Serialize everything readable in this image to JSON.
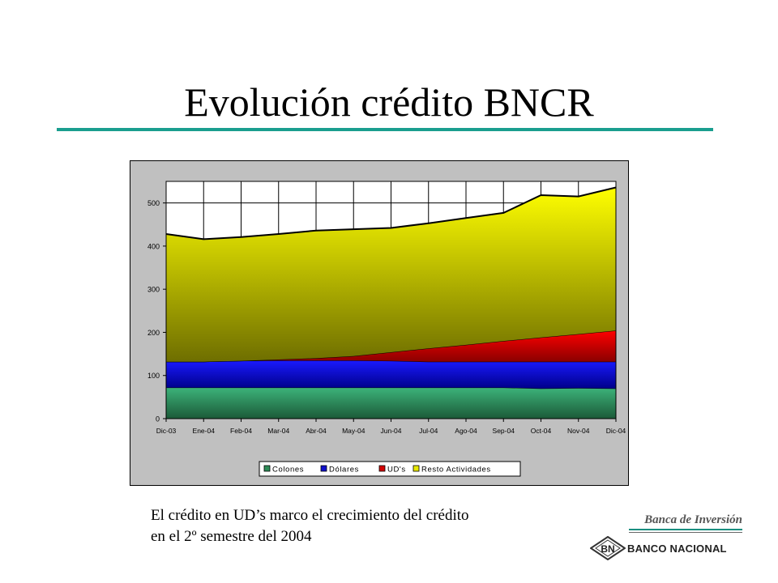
{
  "slide": {
    "title": "Evolución crédito BNCR",
    "caption_line1": "El crédito en UD’s marco el crecimiento del crédito",
    "caption_line2": "en el 2º semestre del 2004"
  },
  "logo": {
    "tagline": "Banca de Inversión",
    "badge": "BN",
    "name": "BANCO NACIONAL"
  },
  "chart_data": {
    "type": "area",
    "stacked": true,
    "categories": [
      "Dic-03",
      "Ene-04",
      "Feb-04",
      "Mar-04",
      "Abr-04",
      "May-04",
      "Jun-04",
      "Jul-04",
      "Ago-04",
      "Sep-04",
      "Oct-04",
      "Nov-04",
      "Dic-04"
    ],
    "series": [
      {
        "name": "Colones",
        "color": "#2e8b57",
        "values": [
          72,
          72,
          72,
          72,
          72,
          72,
          72,
          72,
          72,
          72,
          70,
          71,
          70
        ]
      },
      {
        "name": "Dólares",
        "color": "#1010cc",
        "values": [
          60,
          60,
          62,
          63,
          63,
          63,
          62,
          60,
          60,
          60,
          62,
          61,
          62
        ]
      },
      {
        "name": "UD's",
        "color": "#d40000",
        "values": [
          0,
          0,
          0,
          2,
          5,
          10,
          20,
          31,
          39,
          48,
          56,
          64,
          72
        ]
      },
      {
        "name": "Resto Actividades",
        "color": "#e8e800",
        "values": [
          296,
          284,
          287,
          291,
          296,
          294,
          288,
          290,
          294,
          297,
          330,
          319,
          332
        ]
      }
    ],
    "ylim": [
      0,
      550
    ],
    "yticks": [
      0,
      100,
      200,
      300,
      400,
      500
    ],
    "grid": true,
    "legend_position": "bottom"
  }
}
